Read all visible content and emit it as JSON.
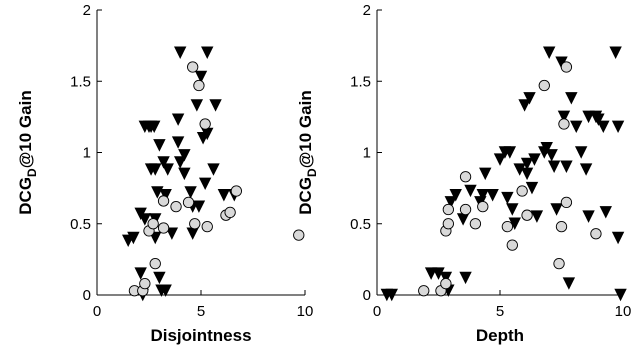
{
  "chart_data": [
    {
      "type": "scatter",
      "title": "",
      "xlabel": "Disjointness",
      "ylabel": {
        "main": "DCG",
        "sub": "D",
        "suffix": "@10 Gain"
      },
      "xlim": [
        0,
        10
      ],
      "ylim": [
        0,
        2
      ],
      "xticks": [
        "0",
        "5",
        "10"
      ],
      "yticks": [
        "0",
        "0.5",
        "1",
        "1.5",
        "2"
      ],
      "grid": false,
      "legend": "none",
      "series": [
        {
          "marker": "triangle-down",
          "color": "#000000",
          "points": [
            [
              1.5,
              0.38
            ],
            [
              1.75,
              0.4
            ],
            [
              2.1,
              0.57
            ],
            [
              2.3,
              0.53
            ],
            [
              2.3,
              1.18
            ],
            [
              2.5,
              1.18
            ],
            [
              2.6,
              0.88
            ],
            [
              2.75,
              1.18
            ],
            [
              2.8,
              0.88
            ],
            [
              2.8,
              0.53
            ],
            [
              2.8,
              0.4
            ],
            [
              2.9,
              0.72
            ],
            [
              3.0,
              1.05
            ],
            [
              3.2,
              0.93
            ],
            [
              3.3,
              0.7
            ],
            [
              3.4,
              0.88
            ],
            [
              3.6,
              0.43
            ],
            [
              3.9,
              1.07
            ],
            [
              3.9,
              1.23
            ],
            [
              4.0,
              1.7
            ],
            [
              4.0,
              0.93
            ],
            [
              4.2,
              0.98
            ],
            [
              4.2,
              0.85
            ],
            [
              4.5,
              0.72
            ],
            [
              4.6,
              0.62
            ],
            [
              4.6,
              0.43
            ],
            [
              4.8,
              1.33
            ],
            [
              4.9,
              0.62
            ],
            [
              5.0,
              1.53
            ],
            [
              5.1,
              1.1
            ],
            [
              5.2,
              0.78
            ],
            [
              5.3,
              1.7
            ],
            [
              5.3,
              1.13
            ],
            [
              5.6,
              0.88
            ],
            [
              5.7,
              1.33
            ],
            [
              6.1,
              0.7
            ],
            [
              6.6,
              0.7
            ],
            [
              2.1,
              0.15
            ],
            [
              2.2,
              0.0
            ],
            [
              3.0,
              0.12
            ],
            [
              3.1,
              0.03
            ],
            [
              3.3,
              0.03
            ],
            [
              2.6,
              1.18
            ]
          ]
        },
        {
          "marker": "circle",
          "color": "#d9d9d9",
          "points": [
            [
              1.8,
              0.03
            ],
            [
              2.2,
              0.03
            ],
            [
              2.3,
              0.08
            ],
            [
              2.5,
              0.45
            ],
            [
              2.7,
              0.5
            ],
            [
              2.8,
              0.22
            ],
            [
              3.2,
              0.47
            ],
            [
              3.2,
              0.66
            ],
            [
              3.8,
              0.62
            ],
            [
              4.4,
              0.65
            ],
            [
              4.6,
              1.6
            ],
            [
              4.7,
              0.5
            ],
            [
              4.9,
              1.47
            ],
            [
              5.2,
              1.2
            ],
            [
              5.3,
              0.48
            ],
            [
              6.2,
              0.56
            ],
            [
              6.4,
              0.58
            ],
            [
              6.7,
              0.73
            ],
            [
              9.7,
              0.42
            ]
          ]
        }
      ]
    },
    {
      "type": "scatter",
      "title": "",
      "xlabel": "Depth",
      "ylabel": {
        "main": "DCG",
        "sub": "D",
        "suffix": "@10 Gain"
      },
      "xlim": [
        0,
        10
      ],
      "ylim": [
        0,
        2
      ],
      "xticks": [
        "0",
        "5",
        "10"
      ],
      "yticks": [
        "0",
        "0.5",
        "1",
        "1.5",
        "2"
      ],
      "grid": false,
      "legend": "none",
      "series": [
        {
          "marker": "triangle-down",
          "color": "#000000",
          "points": [
            [
              0.4,
              0.0
            ],
            [
              0.6,
              0.0
            ],
            [
              2.2,
              0.15
            ],
            [
              2.5,
              0.15
            ],
            [
              2.8,
              0.12
            ],
            [
              2.9,
              0.03
            ],
            [
              3.0,
              0.65
            ],
            [
              3.2,
              0.7
            ],
            [
              3.6,
              0.12
            ],
            [
              3.5,
              0.53
            ],
            [
              3.8,
              0.73
            ],
            [
              4.2,
              0.65
            ],
            [
              4.3,
              0.7
            ],
            [
              4.4,
              0.85
            ],
            [
              4.7,
              0.7
            ],
            [
              5.0,
              0.95
            ],
            [
              5.2,
              1.0
            ],
            [
              5.3,
              0.68
            ],
            [
              5.4,
              1.0
            ],
            [
              5.5,
              0.6
            ],
            [
              5.6,
              0.5
            ],
            [
              5.8,
              0.88
            ],
            [
              6.0,
              1.33
            ],
            [
              6.1,
              0.85
            ],
            [
              6.2,
              1.38
            ],
            [
              6.3,
              0.75
            ],
            [
              6.4,
              0.95
            ],
            [
              6.5,
              0.55
            ],
            [
              6.8,
              1.0
            ],
            [
              6.9,
              1.03
            ],
            [
              7.0,
              1.7
            ],
            [
              7.1,
              0.98
            ],
            [
              7.2,
              0.9
            ],
            [
              7.3,
              0.6
            ],
            [
              7.5,
              1.63
            ],
            [
              7.6,
              1.25
            ],
            [
              7.7,
              0.9
            ],
            [
              7.8,
              0.08
            ],
            [
              7.9,
              1.38
            ],
            [
              8.1,
              1.18
            ],
            [
              8.3,
              1.0
            ],
            [
              8.5,
              0.88
            ],
            [
              8.6,
              1.25
            ],
            [
              8.9,
              1.25
            ],
            [
              9.0,
              1.23
            ],
            [
              9.2,
              1.18
            ],
            [
              9.3,
              0.58
            ],
            [
              9.7,
              1.7
            ],
            [
              9.8,
              1.18
            ],
            [
              9.8,
              0.4
            ],
            [
              9.9,
              0.0
            ],
            [
              8.6,
              0.55
            ],
            [
              6.1,
              0.92
            ]
          ]
        },
        {
          "marker": "circle",
          "color": "#d9d9d9",
          "points": [
            [
              1.9,
              0.03
            ],
            [
              2.6,
              0.03
            ],
            [
              2.8,
              0.08
            ],
            [
              2.8,
              0.45
            ],
            [
              2.9,
              0.5
            ],
            [
              2.9,
              0.6
            ],
            [
              3.6,
              0.6
            ],
            [
              3.6,
              0.83
            ],
            [
              4.0,
              0.5
            ],
            [
              4.3,
              0.62
            ],
            [
              5.3,
              0.48
            ],
            [
              5.5,
              0.35
            ],
            [
              5.9,
              0.73
            ],
            [
              6.1,
              0.56
            ],
            [
              6.8,
              1.47
            ],
            [
              7.4,
              0.22
            ],
            [
              7.5,
              0.48
            ],
            [
              7.6,
              1.2
            ],
            [
              7.7,
              0.65
            ],
            [
              7.7,
              1.6
            ],
            [
              8.9,
              0.43
            ]
          ]
        }
      ]
    }
  ]
}
